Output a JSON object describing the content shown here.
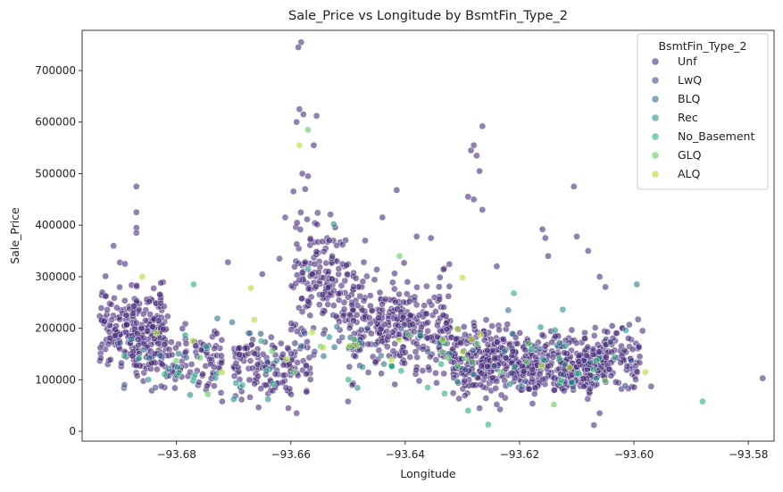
{
  "chart_data": {
    "type": "scatter",
    "title": "Sale_Price vs Longitude by BsmtFin_Type_2",
    "xlabel": "Longitude",
    "ylabel": "Sale_Price",
    "xlim": [
      -93.6965,
      -93.5755
    ],
    "ylim": [
      -19000,
      778000
    ],
    "x_ticks": [
      -93.68,
      -93.66,
      -93.64,
      -93.62,
      -93.6,
      -93.58
    ],
    "x_tick_labels": [
      "−93.68",
      "−93.66",
      "−93.64",
      "−93.62",
      "−93.60",
      "−93.58"
    ],
    "y_ticks": [
      0,
      100000,
      200000,
      300000,
      400000,
      500000,
      600000,
      700000
    ],
    "y_tick_labels": [
      "0",
      "100000",
      "200000",
      "300000",
      "400000",
      "500000",
      "600000",
      "700000"
    ],
    "grid": false,
    "legend": {
      "title": "BsmtFin_Type_2",
      "placement": "top-right"
    },
    "point_opacity": 0.6,
    "series": [
      {
        "name": "Unf",
        "color": "#472d7b",
        "clusters": [
          {
            "x_min": -93.6935,
            "x_max": -93.6815,
            "y_center": 205000,
            "y_spread": 40000,
            "count": 230
          },
          {
            "x_min": -93.688,
            "x_max": -93.672,
            "y_center": 135000,
            "y_spread": 28000,
            "count": 120
          },
          {
            "x_min": -93.67,
            "x_max": -93.656,
            "y_center": 130000,
            "y_spread": 30000,
            "count": 140
          },
          {
            "x_min": -93.66,
            "x_max": -93.65,
            "y_center": 290000,
            "y_spread": 60000,
            "count": 160
          },
          {
            "x_min": -93.65,
            "x_max": -93.632,
            "y_center": 205000,
            "y_spread": 45000,
            "count": 320
          },
          {
            "x_min": -93.632,
            "x_max": -93.618,
            "y_center": 140000,
            "y_spread": 32000,
            "count": 300
          },
          {
            "x_min": -93.618,
            "x_max": -93.605,
            "y_center": 130000,
            "y_spread": 28000,
            "count": 260
          },
          {
            "x_min": -93.605,
            "x_max": -93.599,
            "y_center": 140000,
            "y_spread": 35000,
            "count": 70
          }
        ],
        "points": [
          {
            "x": -93.6582,
            "y": 755000
          },
          {
            "x": -93.6587,
            "y": 745000
          },
          {
            "x": -93.6585,
            "y": 625000
          },
          {
            "x": -93.6578,
            "y": 615000
          },
          {
            "x": -93.6555,
            "y": 612000
          },
          {
            "x": -93.659,
            "y": 600000
          },
          {
            "x": -93.656,
            "y": 555000
          },
          {
            "x": -93.658,
            "y": 500000
          },
          {
            "x": -93.657,
            "y": 495000
          },
          {
            "x": -93.6575,
            "y": 470000
          },
          {
            "x": -93.687,
            "y": 475000
          },
          {
            "x": -93.687,
            "y": 425000
          },
          {
            "x": -93.687,
            "y": 395000
          },
          {
            "x": -93.687,
            "y": 385000
          },
          {
            "x": -93.6265,
            "y": 592000
          },
          {
            "x": -93.628,
            "y": 555000
          },
          {
            "x": -93.6285,
            "y": 545000
          },
          {
            "x": -93.6275,
            "y": 535000
          },
          {
            "x": -93.627,
            "y": 505000
          },
          {
            "x": -93.629,
            "y": 455000
          },
          {
            "x": -93.628,
            "y": 450000
          },
          {
            "x": -93.6265,
            "y": 430000
          },
          {
            "x": -93.6415,
            "y": 468000
          },
          {
            "x": -93.644,
            "y": 415000
          },
          {
            "x": -93.638,
            "y": 378000
          },
          {
            "x": -93.6355,
            "y": 375000
          },
          {
            "x": -93.647,
            "y": 370000
          },
          {
            "x": -93.661,
            "y": 415000
          },
          {
            "x": -93.662,
            "y": 335000
          },
          {
            "x": -93.691,
            "y": 360000
          },
          {
            "x": -93.689,
            "y": 325000
          },
          {
            "x": -93.671,
            "y": 328000
          },
          {
            "x": -93.665,
            "y": 305000
          },
          {
            "x": -93.616,
            "y": 392000
          },
          {
            "x": -93.6155,
            "y": 375000
          },
          {
            "x": -93.615,
            "y": 340000
          },
          {
            "x": -93.6105,
            "y": 475000
          },
          {
            "x": -93.61,
            "y": 378000
          },
          {
            "x": -93.608,
            "y": 350000
          },
          {
            "x": -93.606,
            "y": 300000
          },
          {
            "x": -93.605,
            "y": 280000
          },
          {
            "x": -93.624,
            "y": 320000
          },
          {
            "x": -93.5775,
            "y": 103000
          },
          {
            "x": -93.597,
            "y": 87000
          },
          {
            "x": -93.5985,
            "y": 195000
          },
          {
            "x": -93.599,
            "y": 145000
          },
          {
            "x": -93.607,
            "y": 12000
          },
          {
            "x": -93.606,
            "y": 35000
          },
          {
            "x": -93.659,
            "y": 35000
          },
          {
            "x": -93.65,
            "y": 58000
          },
          {
            "x": -93.672,
            "y": 58000
          },
          {
            "x": -93.627,
            "y": 45000
          },
          {
            "x": -93.624,
            "y": 52000
          }
        ]
      },
      {
        "name": "LwQ",
        "color": "#3b528b",
        "clusters": [
          {
            "x_min": -93.69,
            "x_max": -93.6,
            "y_center": 150000,
            "y_spread": 35000,
            "count": 35
          }
        ],
        "points": []
      },
      {
        "name": "BLQ",
        "color": "#2c728e",
        "clusters": [
          {
            "x_min": -93.69,
            "x_max": -93.6,
            "y_center": 145000,
            "y_spread": 35000,
            "count": 30
          }
        ],
        "points": [
          {
            "x": -93.5995,
            "y": 285000
          },
          {
            "x": -93.622,
            "y": 235000
          }
        ]
      },
      {
        "name": "Rec",
        "color": "#21918c",
        "clusters": [
          {
            "x_min": -93.69,
            "x_max": -93.6,
            "y_center": 140000,
            "y_spread": 35000,
            "count": 30
          }
        ],
        "points": [
          {
            "x": -93.6525,
            "y": 402000
          },
          {
            "x": -93.657,
            "y": 315000
          },
          {
            "x": -93.67,
            "y": 62000
          },
          {
            "x": -93.664,
            "y": 62000
          }
        ]
      },
      {
        "name": "No_Basement",
        "color": "#28ae80",
        "clusters": [
          {
            "x_min": -93.69,
            "x_max": -93.6,
            "y_center": 125000,
            "y_spread": 30000,
            "count": 25
          }
        ],
        "points": [
          {
            "x": -93.6255,
            "y": 13000
          },
          {
            "x": -93.629,
            "y": 40000
          },
          {
            "x": -93.588,
            "y": 58000
          },
          {
            "x": -93.677,
            "y": 285000
          },
          {
            "x": -93.621,
            "y": 268000
          }
        ]
      },
      {
        "name": "GLQ",
        "color": "#5ec962",
        "clusters": [
          {
            "x_min": -93.688,
            "x_max": -93.605,
            "y_center": 140000,
            "y_spread": 30000,
            "count": 18
          }
        ],
        "points": [
          {
            "x": -93.657,
            "y": 585000
          },
          {
            "x": -93.641,
            "y": 340000
          },
          {
            "x": -93.614,
            "y": 52000
          }
        ]
      },
      {
        "name": "ALQ",
        "color": "#addc30",
        "clusters": [
          {
            "x_min": -93.688,
            "x_max": -93.605,
            "y_center": 160000,
            "y_spread": 30000,
            "count": 18
          }
        ],
        "points": [
          {
            "x": -93.6585,
            "y": 555000
          },
          {
            "x": -93.686,
            "y": 300000
          },
          {
            "x": -93.667,
            "y": 278000
          },
          {
            "x": -93.63,
            "y": 298000
          },
          {
            "x": -93.598,
            "y": 115000
          }
        ]
      }
    ]
  }
}
